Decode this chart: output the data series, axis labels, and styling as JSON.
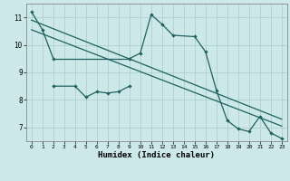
{
  "xlabel": "Humidex (Indice chaleur)",
  "xlim": [
    -0.5,
    23.5
  ],
  "ylim": [
    6.5,
    11.5
  ],
  "xticks": [
    0,
    1,
    2,
    3,
    4,
    5,
    6,
    7,
    8,
    9,
    10,
    11,
    12,
    13,
    14,
    15,
    16,
    17,
    18,
    19,
    20,
    21,
    22,
    23
  ],
  "yticks": [
    7,
    8,
    9,
    10,
    11
  ],
  "bg_color": "#cce8e8",
  "grid_color": "#aacccc",
  "line_color": "#206060",
  "line1_x": [
    0,
    1,
    2,
    9,
    10,
    11,
    12,
    13,
    15,
    16,
    17,
    18,
    19,
    20,
    21,
    22,
    23
  ],
  "line1_y": [
    11.2,
    10.55,
    9.5,
    9.5,
    9.7,
    11.1,
    10.75,
    10.35,
    10.3,
    9.75,
    8.35,
    7.25,
    6.95,
    6.85,
    7.4,
    6.8,
    6.6
  ],
  "line2_x": [
    2,
    4,
    5,
    6,
    7,
    8,
    9
  ],
  "line2_y": [
    8.5,
    8.5,
    8.1,
    8.3,
    8.25,
    8.3,
    8.5
  ],
  "trend1_x0": 0,
  "trend1_y0": 10.9,
  "trend1_x1": 23,
  "trend1_y1": 7.3,
  "trend2_x0": 0,
  "trend2_y0": 10.55,
  "trend2_x1": 23,
  "trend2_y1": 7.05
}
